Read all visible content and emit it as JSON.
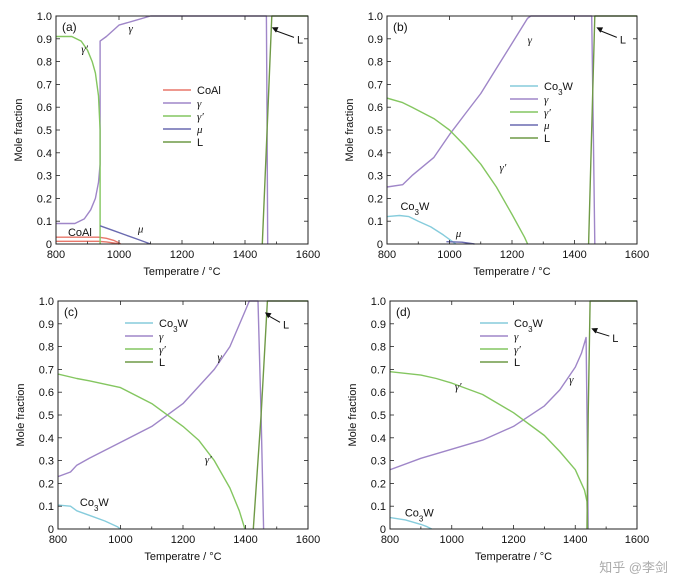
{
  "watermark": "知乎 @李剑",
  "colors": {
    "CoAl": "#e8776a",
    "gamma": "#9f86c8",
    "gamma_prime": "#84c660",
    "mu": "#6a6ab0",
    "L": "#6f9a46",
    "Co3W": "#86ccdc"
  },
  "chart_data": [
    {
      "type": "line",
      "panel_label": "(a)",
      "xlabel": "Temperatre / °C",
      "ylabel": "Mole fraction",
      "xlim": [
        800,
        1600
      ],
      "ylim": [
        0,
        1
      ],
      "xticks": [
        "800",
        "1000",
        "1200",
        "1400",
        "1600"
      ],
      "yticks": [
        "0",
        "0.1",
        "0.2",
        "0.3",
        "0.4",
        "0.5",
        "0.6",
        "0.7",
        "0.8",
        "0.9",
        "1.0"
      ],
      "legend": [
        "CoAl",
        "γ",
        "γ′",
        "μ",
        "L"
      ],
      "legend_position": "center-right",
      "series": [
        {
          "name": "CoAl",
          "color_key": "CoAl",
          "points": [
            [
              800,
              0.03
            ],
            [
              860,
              0.03
            ],
            [
              900,
              0.03
            ],
            [
              935,
              0.03
            ],
            [
              960,
              0.025
            ],
            [
              985,
              0.015
            ],
            [
              1000,
              0.005
            ],
            [
              1005,
              0
            ]
          ]
        },
        {
          "name": "CoAl",
          "color_key": "CoAl",
          "points": [
            [
              800,
              0.012
            ],
            [
              935,
              0.012
            ],
            [
              960,
              0.009
            ],
            [
              985,
              0.004
            ],
            [
              1000,
              0
            ]
          ]
        },
        {
          "name": "γ",
          "color_key": "gamma",
          "points": [
            [
              800,
              0.09
            ],
            [
              860,
              0.09
            ],
            [
              890,
              0.11
            ],
            [
              910,
              0.15
            ],
            [
              925,
              0.2
            ],
            [
              935,
              0.27
            ],
            [
              940,
              0.35
            ],
            [
              940,
              0.89
            ],
            [
              960,
              0.91
            ],
            [
              1000,
              0.96
            ],
            [
              1050,
              0.98
            ],
            [
              1100,
              1.0
            ],
            [
              1468,
              1.0
            ],
            [
              1470,
              0.5
            ],
            [
              1472,
              0.0
            ]
          ]
        },
        {
          "name": "γ′",
          "color_key": "gamma_prime",
          "points": [
            [
              800,
              0.91
            ],
            [
              850,
              0.91
            ],
            [
              880,
              0.89
            ],
            [
              900,
              0.85
            ],
            [
              915,
              0.8
            ],
            [
              925,
              0.75
            ],
            [
              935,
              0.65
            ],
            [
              940,
              0.5
            ],
            [
              940,
              0.0
            ]
          ]
        },
        {
          "name": "μ",
          "color_key": "mu",
          "points": [
            [
              940,
              0.08
            ],
            [
              980,
              0.06
            ],
            [
              1020,
              0.04
            ],
            [
              1060,
              0.02
            ],
            [
              1100,
              0.0
            ]
          ]
        },
        {
          "name": "L",
          "color_key": "L",
          "points": [
            [
              1455,
              0.0
            ],
            [
              1470,
              0.5
            ],
            [
              1485,
              1.0
            ],
            [
              1600,
              1.0
            ]
          ]
        }
      ],
      "annotations": [
        {
          "text": "γ′",
          "style": "italic",
          "x": 880,
          "y": 0.84
        },
        {
          "text": "γ",
          "style": "italic",
          "x": 1030,
          "y": 0.93
        },
        {
          "text": "μ",
          "style": "italic",
          "x": 1060,
          "y": 0.05
        },
        {
          "text": "CoAl",
          "style": "normal",
          "x": 838,
          "y": 0.035
        },
        {
          "text": "L",
          "style": "normal",
          "x": 1565,
          "y": 0.88,
          "arrow_to": [
            1485,
            0.95
          ]
        }
      ]
    },
    {
      "type": "line",
      "panel_label": "(b)",
      "xlabel": "Temperatre / °C",
      "ylabel": "Mole fraction",
      "xlim": [
        800,
        1600
      ],
      "ylim": [
        0,
        1
      ],
      "xticks": [
        "800",
        "1000",
        "1200",
        "1400",
        "1600"
      ],
      "yticks": [
        "0",
        "0.1",
        "0.2",
        "0.3",
        "0.4",
        "0.5",
        "0.6",
        "0.7",
        "0.8",
        "0.9",
        "1.0"
      ],
      "legend": [
        "Co3W",
        "γ",
        "γ′",
        "μ",
        "L"
      ],
      "legend_position": "top-right",
      "series": [
        {
          "name": "Co3W",
          "color_key": "Co3W",
          "points": [
            [
              800,
              0.12
            ],
            [
              840,
              0.125
            ],
            [
              870,
              0.12
            ],
            [
              900,
              0.1
            ],
            [
              940,
              0.075
            ],
            [
              980,
              0.04
            ],
            [
              1010,
              0.01
            ],
            [
              1020,
              0.0
            ]
          ]
        },
        {
          "name": "γ",
          "color_key": "gamma",
          "points": [
            [
              800,
              0.25
            ],
            [
              850,
              0.26
            ],
            [
              880,
              0.3
            ],
            [
              950,
              0.38
            ],
            [
              1000,
              0.48
            ],
            [
              1050,
              0.57
            ],
            [
              1100,
              0.66
            ],
            [
              1150,
              0.77
            ],
            [
              1200,
              0.88
            ],
            [
              1250,
              0.99
            ],
            [
              1260,
              1.0
            ],
            [
              1455,
              1.0
            ],
            [
              1460,
              0.5
            ],
            [
              1465,
              0.0
            ]
          ]
        },
        {
          "name": "γ′",
          "color_key": "gamma_prime",
          "points": [
            [
              800,
              0.64
            ],
            [
              850,
              0.62
            ],
            [
              880,
              0.6
            ],
            [
              950,
              0.55
            ],
            [
              1000,
              0.5
            ],
            [
              1050,
              0.43
            ],
            [
              1100,
              0.35
            ],
            [
              1150,
              0.25
            ],
            [
              1200,
              0.13
            ],
            [
              1240,
              0.03
            ],
            [
              1250,
              0.0
            ]
          ]
        },
        {
          "name": "μ",
          "color_key": "mu",
          "points": [
            [
              990,
              0.01
            ],
            [
              1040,
              0.008
            ],
            [
              1080,
              0.0
            ]
          ]
        },
        {
          "name": "L",
          "color_key": "L",
          "points": [
            [
              1445,
              0.0
            ],
            [
              1455,
              0.5
            ],
            [
              1465,
              1.0
            ],
            [
              1600,
              1.0
            ]
          ]
        }
      ],
      "annotations": [
        {
          "text": "γ",
          "style": "italic",
          "x": 1250,
          "y": 0.88
        },
        {
          "text": "γ′",
          "style": "italic",
          "x": 1160,
          "y": 0.32
        },
        {
          "text": "μ",
          "style": "italic",
          "x": 1020,
          "y": 0.03
        },
        {
          "text": "Co3W",
          "style": "normal",
          "x": 843,
          "y": 0.15
        },
        {
          "text": "L",
          "style": "normal",
          "x": 1545,
          "y": 0.88,
          "arrow_to": [
            1470,
            0.95
          ]
        }
      ]
    },
    {
      "type": "line",
      "panel_label": "(c)",
      "xlabel": "Temperatre / °C",
      "ylabel": "Mole fraction",
      "xlim": [
        800,
        1600
      ],
      "ylim": [
        0,
        1
      ],
      "xticks": [
        "800",
        "1000",
        "1200",
        "1400",
        "1600"
      ],
      "yticks": [
        "0",
        "0.1",
        "0.2",
        "0.3",
        "0.4",
        "0.5",
        "0.6",
        "0.7",
        "0.8",
        "0.9",
        "1.0"
      ],
      "legend": [
        "Co3W",
        "γ",
        "γ′",
        "L"
      ],
      "legend_position": "top-center",
      "series": [
        {
          "name": "Co3W",
          "color_key": "Co3W",
          "points": [
            [
              800,
              0.105
            ],
            [
              840,
              0.1
            ],
            [
              860,
              0.08
            ],
            [
              900,
              0.06
            ],
            [
              950,
              0.035
            ],
            [
              990,
              0.01
            ],
            [
              1000,
              0.0
            ]
          ]
        },
        {
          "name": "γ",
          "color_key": "gamma",
          "points": [
            [
              800,
              0.23
            ],
            [
              840,
              0.25
            ],
            [
              860,
              0.28
            ],
            [
              900,
              0.31
            ],
            [
              1000,
              0.38
            ],
            [
              1100,
              0.45
            ],
            [
              1200,
              0.55
            ],
            [
              1300,
              0.7
            ],
            [
              1350,
              0.8
            ],
            [
              1400,
              0.96
            ],
            [
              1412,
              1.0
            ],
            [
              1440,
              1.0
            ],
            [
              1450,
              0.5
            ],
            [
              1458,
              0.0
            ]
          ]
        },
        {
          "name": "γ′",
          "color_key": "gamma_prime",
          "points": [
            [
              800,
              0.68
            ],
            [
              860,
              0.66
            ],
            [
              900,
              0.65
            ],
            [
              1000,
              0.62
            ],
            [
              1100,
              0.55
            ],
            [
              1200,
              0.45
            ],
            [
              1250,
              0.39
            ],
            [
              1300,
              0.3
            ],
            [
              1350,
              0.18
            ],
            [
              1380,
              0.08
            ],
            [
              1398,
              0.0
            ]
          ]
        },
        {
          "name": "L",
          "color_key": "L",
          "points": [
            [
              1425,
              0.0
            ],
            [
              1450,
              0.5
            ],
            [
              1470,
              1.0
            ],
            [
              1600,
              1.0
            ]
          ]
        }
      ],
      "annotations": [
        {
          "text": "γ",
          "style": "italic",
          "x": 1310,
          "y": 0.74
        },
        {
          "text": "γ′",
          "style": "italic",
          "x": 1270,
          "y": 0.29
        },
        {
          "text": "Co3W",
          "style": "normal",
          "x": 870,
          "y": 0.1
        },
        {
          "text": "L",
          "style": "normal",
          "x": 1520,
          "y": 0.88,
          "arrow_to": [
            1462,
            0.95
          ]
        }
      ]
    },
    {
      "type": "line",
      "panel_label": "(d)",
      "xlabel": "Temperatre / °C",
      "ylabel": "Mole fraction",
      "xlim": [
        800,
        1600
      ],
      "ylim": [
        0,
        1
      ],
      "xticks": [
        "800",
        "1000",
        "1200",
        "1400",
        "1600"
      ],
      "yticks": [
        "0",
        "0.1",
        "0.2",
        "0.3",
        "0.4",
        "0.5",
        "0.6",
        "0.7",
        "0.8",
        "0.9",
        "1.0"
      ],
      "legend": [
        "Co3W",
        "γ",
        "γ′",
        "L"
      ],
      "legend_position": "top-center",
      "series": [
        {
          "name": "Co3W",
          "color_key": "Co3W",
          "points": [
            [
              800,
              0.05
            ],
            [
              850,
              0.04
            ],
            [
              900,
              0.02
            ],
            [
              920,
              0.01
            ],
            [
              935,
              0.0
            ]
          ]
        },
        {
          "name": "γ",
          "color_key": "gamma",
          "points": [
            [
              800,
              0.26
            ],
            [
              900,
              0.31
            ],
            [
              1000,
              0.35
            ],
            [
              1100,
              0.39
            ],
            [
              1200,
              0.45
            ],
            [
              1300,
              0.54
            ],
            [
              1350,
              0.61
            ],
            [
              1400,
              0.71
            ],
            [
              1420,
              0.77
            ],
            [
              1435,
              0.84
            ],
            [
              1438,
              0.5
            ],
            [
              1442,
              0.0
            ]
          ]
        },
        {
          "name": "γ′",
          "color_key": "gamma_prime",
          "points": [
            [
              800,
              0.69
            ],
            [
              900,
              0.675
            ],
            [
              950,
              0.66
            ],
            [
              1000,
              0.64
            ],
            [
              1100,
              0.59
            ],
            [
              1200,
              0.51
            ],
            [
              1300,
              0.41
            ],
            [
              1350,
              0.34
            ],
            [
              1400,
              0.26
            ],
            [
              1430,
              0.17
            ],
            [
              1438,
              0.12
            ],
            [
              1440,
              0.0
            ]
          ]
        },
        {
          "name": "L",
          "color_key": "L",
          "points": [
            [
              1438,
              0.0
            ],
            [
              1442,
              0.5
            ],
            [
              1448,
              1.0
            ],
            [
              1600,
              1.0
            ]
          ]
        }
      ],
      "annotations": [
        {
          "text": "γ",
          "style": "italic",
          "x": 1380,
          "y": 0.64
        },
        {
          "text": "γ′",
          "style": "italic",
          "x": 1010,
          "y": 0.61
        },
        {
          "text": "Co3W",
          "style": "normal",
          "x": 848,
          "y": 0.055
        },
        {
          "text": "L",
          "style": "normal",
          "x": 1520,
          "y": 0.82,
          "arrow_to": [
            1452,
            0.88
          ]
        }
      ]
    }
  ]
}
